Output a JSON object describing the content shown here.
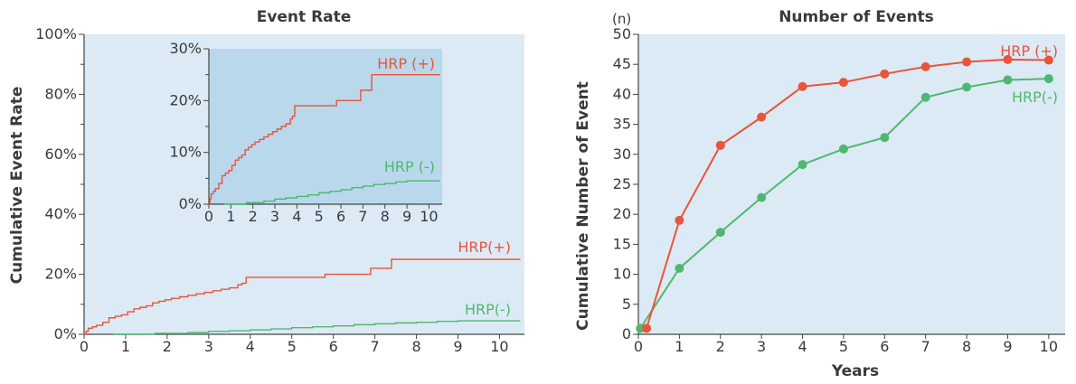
{
  "colors": {
    "plot_bg": "#dceaf5",
    "inset_bg": "#b9d8ec",
    "hrp_pos": "#e8553a",
    "hrp_neg": "#4fb870",
    "axis": "#444444"
  },
  "chart_data": [
    {
      "type": "line",
      "step": true,
      "title": "Event Rate",
      "ylabel": "Cumulative Event Rate",
      "xlabel": "",
      "xlim": [
        0,
        10.6
      ],
      "ylim": [
        0,
        1.0
      ],
      "x_ticks": [
        "0",
        "1",
        "2",
        "3",
        "4",
        "5",
        "6",
        "7",
        "8",
        "9",
        "10"
      ],
      "y_ticks": [
        "0%",
        "20%",
        "40%",
        "60%",
        "80%",
        "100%"
      ],
      "series": [
        {
          "name": "HRP(+)",
          "color": "#e8553a",
          "x": [
            0,
            0.05,
            0.1,
            0.2,
            0.3,
            0.45,
            0.6,
            0.75,
            0.9,
            1.05,
            1.2,
            1.35,
            1.5,
            1.65,
            1.8,
            1.95,
            2.1,
            2.3,
            2.5,
            2.7,
            2.9,
            3.1,
            3.3,
            3.5,
            3.7,
            3.8,
            3.9,
            5.8,
            6.9,
            7.4,
            10.5
          ],
          "y": [
            0.0,
            0.01,
            0.02,
            0.025,
            0.03,
            0.04,
            0.055,
            0.06,
            0.065,
            0.075,
            0.085,
            0.09,
            0.095,
            0.105,
            0.11,
            0.115,
            0.12,
            0.125,
            0.13,
            0.135,
            0.14,
            0.145,
            0.15,
            0.155,
            0.165,
            0.17,
            0.19,
            0.2,
            0.22,
            0.25,
            0.25
          ]
        },
        {
          "name": "HRP(-)",
          "color": "#4fb870",
          "x": [
            0.7,
            1.7,
            2.5,
            3.0,
            3.5,
            4.0,
            4.5,
            5.0,
            5.5,
            6.0,
            6.5,
            7.0,
            7.5,
            8.0,
            8.5,
            9.0,
            10.5
          ],
          "y": [
            0.0,
            0.003,
            0.006,
            0.01,
            0.012,
            0.015,
            0.018,
            0.022,
            0.025,
            0.028,
            0.032,
            0.035,
            0.038,
            0.04,
            0.043,
            0.045,
            0.045
          ]
        }
      ],
      "inset": {
        "xlim": [
          0,
          10.6
        ],
        "ylim": [
          0,
          0.3
        ],
        "x_ticks": [
          "0",
          "1",
          "2",
          "3",
          "4",
          "5",
          "6",
          "7",
          "8",
          "9",
          "10"
        ],
        "y_ticks": [
          "0%",
          "10%",
          "20%",
          "30%"
        ],
        "series_labels": [
          "HRP (+)",
          "HRP (-)"
        ]
      }
    },
    {
      "type": "line",
      "title": "Number of Events",
      "ylabel": "Cumulative Number of Event",
      "xlabel": "Years",
      "unit_label": "(n)",
      "xlim": [
        0,
        10.4
      ],
      "ylim": [
        0,
        50
      ],
      "x_ticks": [
        "0",
        "1",
        "2",
        "3",
        "4",
        "5",
        "6",
        "7",
        "8",
        "9",
        "10"
      ],
      "y_ticks": [
        "0",
        "5",
        "10",
        "15",
        "20",
        "25",
        "30",
        "35",
        "40",
        "45",
        "50"
      ],
      "series": [
        {
          "name": "HRP (+)",
          "color": "#e8553a",
          "x": [
            0.2,
            1,
            2,
            3,
            4,
            5,
            6,
            7,
            8,
            9,
            10
          ],
          "y": [
            1,
            19,
            31.5,
            36.2,
            41.3,
            42,
            43.4,
            44.6,
            45.4,
            45.8,
            45.7
          ]
        },
        {
          "name": "HRP(-)",
          "color": "#4fb870",
          "x": [
            0.05,
            1,
            2,
            3,
            4,
            5,
            6,
            7,
            8,
            9,
            10
          ],
          "y": [
            1,
            11,
            17,
            22.8,
            28.3,
            30.9,
            32.8,
            39.5,
            41.2,
            42.4,
            42.6
          ]
        }
      ]
    }
  ]
}
